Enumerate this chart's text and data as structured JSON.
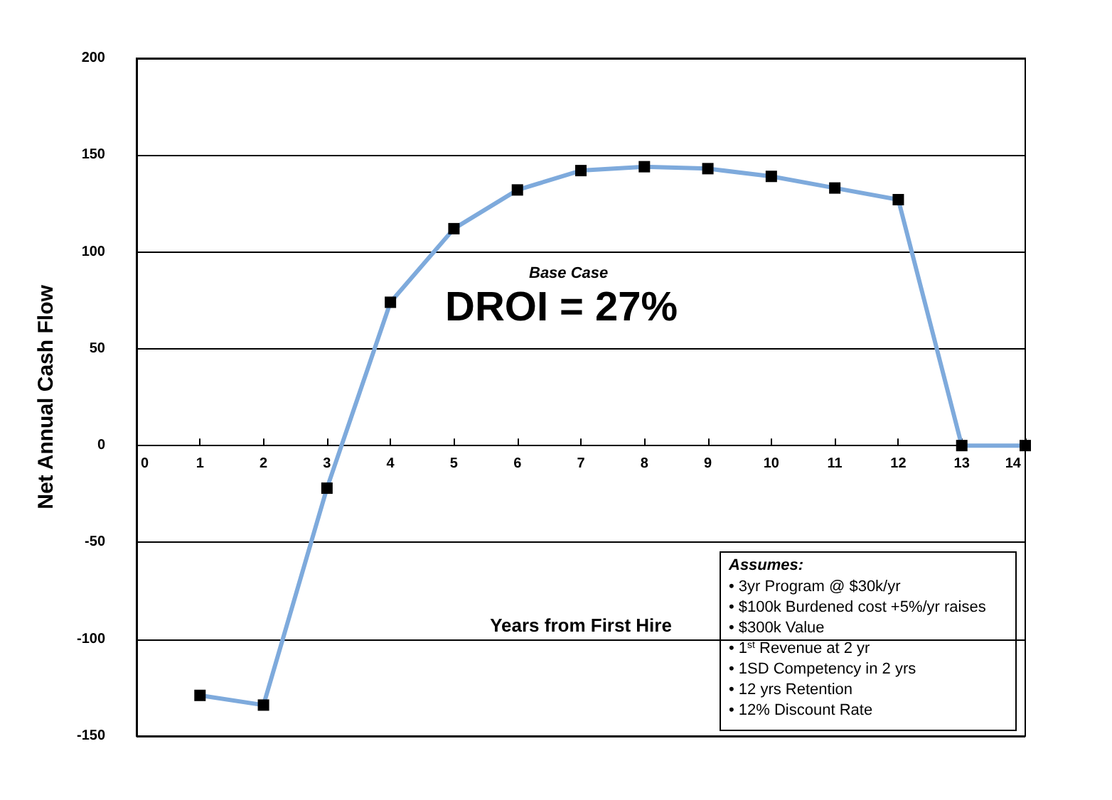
{
  "chart_data": {
    "type": "line",
    "xlabel": "Years from First Hire",
    "ylabel": "Net Annual Cash Flow",
    "x": [
      1,
      2,
      3,
      4,
      5,
      6,
      7,
      8,
      9,
      10,
      11,
      12,
      13,
      14
    ],
    "series": [
      {
        "color": "#7eaadc",
        "values": [
          -129,
          -134,
          -22,
          74,
          112,
          132,
          142,
          144,
          143,
          139,
          133,
          127,
          0,
          0
        ]
      }
    ],
    "xlim": [
      0,
      14
    ],
    "xticks": [
      0,
      1,
      2,
      3,
      4,
      5,
      6,
      7,
      8,
      9,
      10,
      11,
      12,
      13,
      14
    ],
    "ylim": [
      -150,
      200
    ],
    "yticks": [
      -150,
      -100,
      -50,
      0,
      50,
      100,
      150,
      200
    ],
    "grid": "y",
    "marker": "square",
    "line_style": "solid",
    "annotations": [
      "Base Case",
      "DROI = 27%",
      "Assumes:",
      "• 3yr Program @ $30k/yr",
      "• $100k Burdened cost +5%/yr raises",
      "• $300k Value",
      "• 1$^{st}$ Revenue at 2 yr",
      "• 1SD Competency in 2 yrs",
      "• 12 yrs Retention",
      "• 12% Discount Rate"
    ]
  }
}
